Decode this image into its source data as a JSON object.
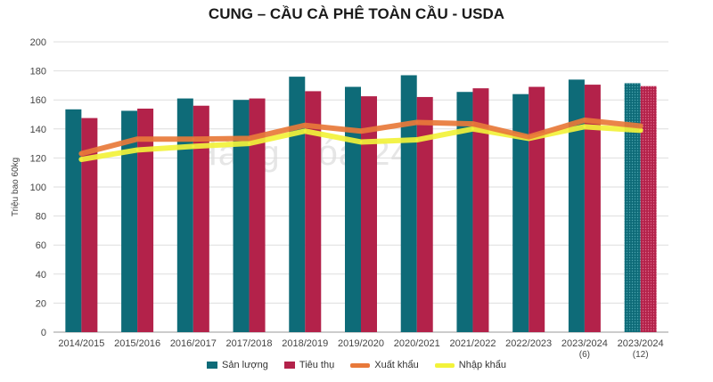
{
  "chart_data": {
    "type": "bar",
    "title": "CUNG – CẦU CÀ PHÊ TOÀN CẦU - USDA",
    "ylabel": "Triệu bao 60kg",
    "xlabel": "",
    "ylim": [
      0,
      200
    ],
    "yticks": [
      0,
      20,
      40,
      60,
      80,
      100,
      120,
      140,
      160,
      180,
      200
    ],
    "grid": true,
    "legend_position": "bottom",
    "watermark": "Hàng Hóa 247",
    "categories": [
      [
        "2014/2015"
      ],
      [
        "2015/2016"
      ],
      [
        "2016/2017"
      ],
      [
        "2017/2018"
      ],
      [
        "2018/2019"
      ],
      [
        "2019/2020"
      ],
      [
        "2020/2021"
      ],
      [
        "2021/2022"
      ],
      [
        "2022/2023"
      ],
      [
        "2023/2024",
        "(6)"
      ],
      [
        "2023/2024",
        "(12)"
      ]
    ],
    "series": [
      {
        "name": "Sản lượng",
        "type": "bar",
        "color": "#0e6b78",
        "values": [
          153.5,
          152.5,
          161,
          160,
          176,
          169,
          177,
          165.5,
          164,
          174,
          171.5
        ]
      },
      {
        "name": "Tiêu thụ",
        "type": "bar",
        "color": "#b3224a",
        "values": [
          147.5,
          154,
          156,
          161,
          166,
          162.5,
          162,
          168,
          169,
          170.5,
          169.5
        ]
      },
      {
        "name": "Xuất khẩu",
        "type": "line",
        "color": "#e8793a",
        "values": [
          123,
          133,
          133,
          133.5,
          142.5,
          138.5,
          144.5,
          143.5,
          134.5,
          146,
          142
        ]
      },
      {
        "name": "Nhập khẩu",
        "type": "line",
        "color": "#f2f23a",
        "values": [
          119,
          125.5,
          128,
          130,
          138.5,
          131,
          132.5,
          140,
          133.5,
          141.5,
          139
        ]
      }
    ],
    "forecast_category_index": 10
  }
}
